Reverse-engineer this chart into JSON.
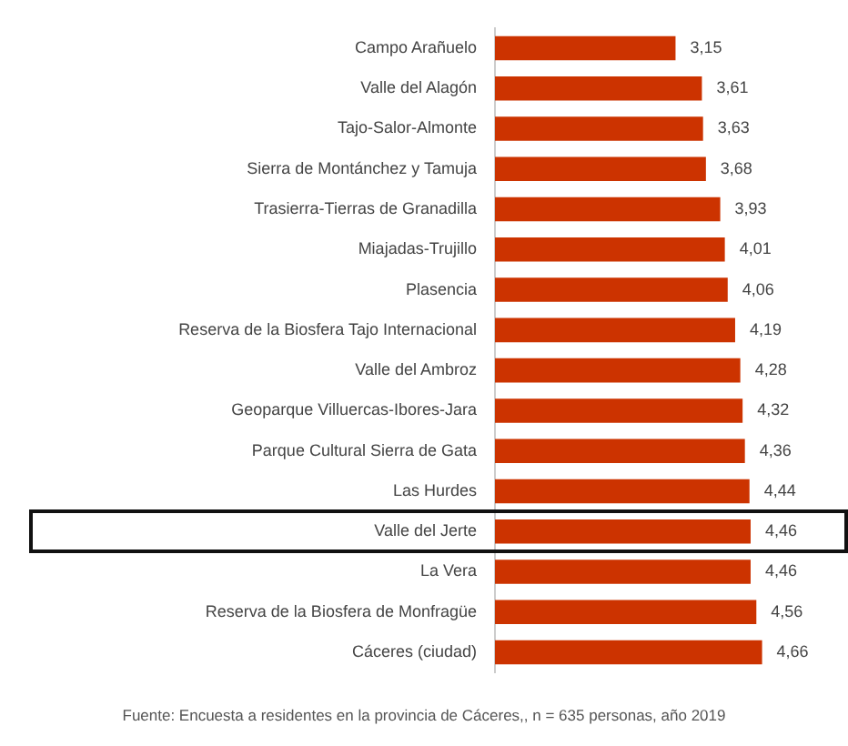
{
  "chart_data": {
    "type": "bar",
    "orientation": "horizontal",
    "categories": [
      "Campo Arañuelo",
      "Valle del Alagón",
      "Tajo-Salor-Almonte",
      "Sierra de Montánchez y Tamuja",
      "Trasierra-Tierras de Granadilla",
      "Miajadas-Trujillo",
      "Plasencia",
      "Reserva de la Biosfera Tajo Internacional",
      "Valle del Ambroz",
      "Geoparque Villuercas-Ibores-Jara",
      "Parque Cultural Sierra de Gata",
      "Las Hurdes",
      "Valle del Jerte",
      "La Vera",
      "Reserva de la Biosfera de Monfragüe",
      "Cáceres (ciudad)"
    ],
    "values": [
      3.15,
      3.61,
      3.63,
      3.68,
      3.93,
      4.01,
      4.06,
      4.19,
      4.28,
      4.32,
      4.36,
      4.44,
      4.46,
      4.46,
      4.56,
      4.66
    ],
    "value_labels": [
      "3,15",
      "3,61",
      "3,63",
      "3,68",
      "3,93",
      "4,01",
      "4,06",
      "4,19",
      "4,28",
      "4,32",
      "4,36",
      "4,44",
      "4,46",
      "4,46",
      "4,56",
      "4,66"
    ],
    "color": "#cc3300",
    "tick_labels": "y",
    "grid": false,
    "legend": false,
    "annotations": [
      "Fuente: Encuesta a residentes en la provincia de Cáceres,, n = 635 personas, año 2019"
    ]
  }
}
